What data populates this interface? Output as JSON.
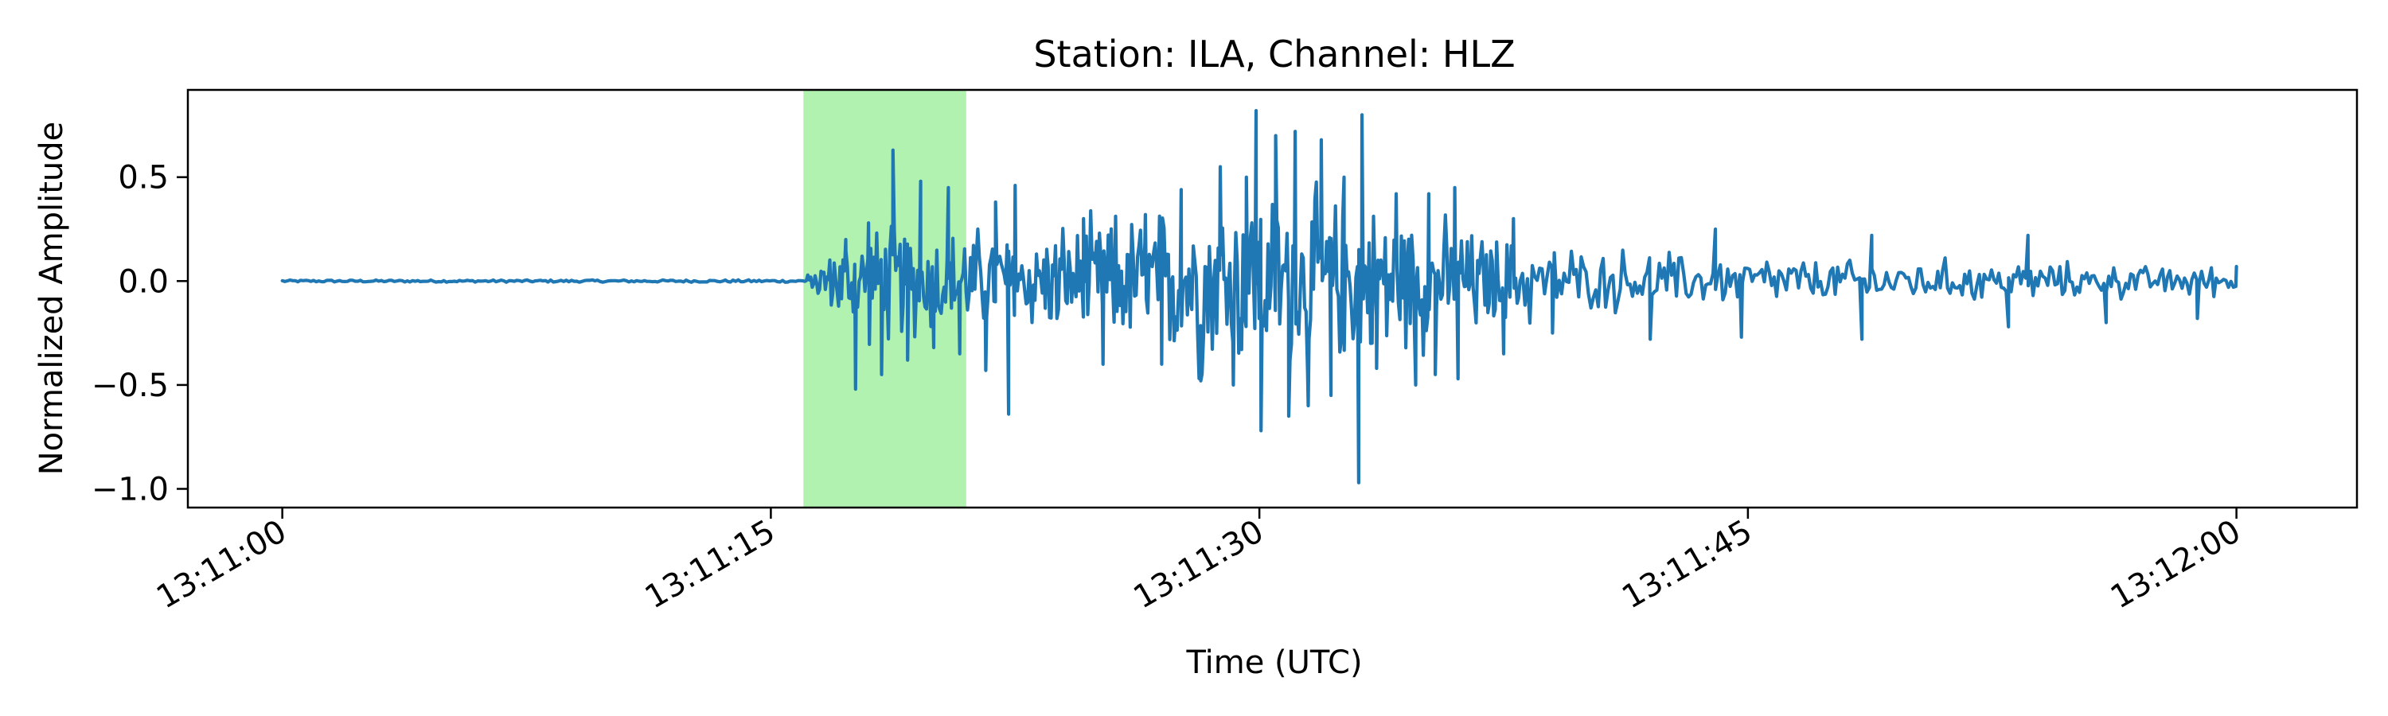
{
  "chart_data": {
    "type": "line",
    "title": "Station: ILA, Channel: HLZ",
    "xlabel": "Time (UTC)",
    "ylabel": "Normalized Amplitude",
    "x_unit": "seconds after 13:11:00 UTC",
    "xlim": [
      -2.9,
      63.7
    ],
    "ylim": [
      -1.09,
      0.92
    ],
    "x_ticks": [
      {
        "value": 0,
        "label": "13:11:00"
      },
      {
        "value": 15,
        "label": "13:11:15"
      },
      {
        "value": 30,
        "label": "13:11:30"
      },
      {
        "value": 45,
        "label": "13:11:45"
      },
      {
        "value": 60,
        "label": "13:12:00"
      }
    ],
    "y_ticks": [
      {
        "value": 0.5,
        "label": "0.5"
      },
      {
        "value": 0.0,
        "label": "0.0"
      },
      {
        "value": -0.5,
        "label": "−0.5"
      },
      {
        "value": -1.0,
        "label": "−1.0"
      }
    ],
    "highlight_region": {
      "x_start": 16.0,
      "x_end": 21.0,
      "color": "#b1f2b1"
    },
    "series_color": "#1f77b4",
    "envelope": [
      {
        "x": 0,
        "a": 0.005
      },
      {
        "x": 15.9,
        "a": 0.006
      },
      {
        "x": 16.0,
        "a": 0.01
      },
      {
        "x": 16.4,
        "a": 0.08
      },
      {
        "x": 17.0,
        "a": 0.2
      },
      {
        "x": 17.5,
        "a": 0.32
      },
      {
        "x": 19.0,
        "a": 0.36
      },
      {
        "x": 21.0,
        "a": 0.3
      },
      {
        "x": 23.0,
        "a": 0.3
      },
      {
        "x": 25.0,
        "a": 0.35
      },
      {
        "x": 28.0,
        "a": 0.5
      },
      {
        "x": 30.0,
        "a": 0.55
      },
      {
        "x": 32.0,
        "a": 0.5
      },
      {
        "x": 34.0,
        "a": 0.45
      },
      {
        "x": 36.0,
        "a": 0.32
      },
      {
        "x": 40.0,
        "a": 0.18
      },
      {
        "x": 45.0,
        "a": 0.14
      },
      {
        "x": 50.0,
        "a": 0.12
      },
      {
        "x": 55.0,
        "a": 0.1
      },
      {
        "x": 60.0,
        "a": 0.08
      }
    ],
    "spikes": [
      {
        "x": 17.3,
        "y": 0.2
      },
      {
        "x": 17.6,
        "y": -0.52
      },
      {
        "x": 18.0,
        "y": 0.28
      },
      {
        "x": 18.4,
        "y": -0.45
      },
      {
        "x": 18.75,
        "y": 0.63
      },
      {
        "x": 19.2,
        "y": -0.38
      },
      {
        "x": 19.6,
        "y": 0.48
      },
      {
        "x": 20.0,
        "y": -0.32
      },
      {
        "x": 20.45,
        "y": 0.45
      },
      {
        "x": 20.8,
        "y": -0.35
      },
      {
        "x": 21.6,
        "y": -0.43
      },
      {
        "x": 21.9,
        "y": 0.38
      },
      {
        "x": 22.3,
        "y": -0.64
      },
      {
        "x": 22.5,
        "y": 0.46
      },
      {
        "x": 24.6,
        "y": 0.3
      },
      {
        "x": 25.2,
        "y": -0.4
      },
      {
        "x": 26.5,
        "y": 0.32
      },
      {
        "x": 27.0,
        "y": -0.4
      },
      {
        "x": 27.6,
        "y": 0.44
      },
      {
        "x": 28.2,
        "y": -0.48
      },
      {
        "x": 28.8,
        "y": 0.55
      },
      {
        "x": 29.2,
        "y": -0.5
      },
      {
        "x": 29.6,
        "y": 0.5
      },
      {
        "x": 29.9,
        "y": 0.82
      },
      {
        "x": 30.05,
        "y": -0.72
      },
      {
        "x": 30.5,
        "y": 0.7
      },
      {
        "x": 30.9,
        "y": -0.65
      },
      {
        "x": 31.1,
        "y": 0.72
      },
      {
        "x": 31.5,
        "y": -0.6
      },
      {
        "x": 31.9,
        "y": 0.68
      },
      {
        "x": 32.2,
        "y": -0.55
      },
      {
        "x": 32.6,
        "y": 0.5
      },
      {
        "x": 33.05,
        "y": -0.97
      },
      {
        "x": 33.15,
        "y": 0.8
      },
      {
        "x": 33.6,
        "y": -0.42
      },
      {
        "x": 34.2,
        "y": 0.42
      },
      {
        "x": 34.8,
        "y": -0.5
      },
      {
        "x": 35.2,
        "y": 0.42
      },
      {
        "x": 35.4,
        "y": -0.45
      },
      {
        "x": 36.1,
        "y": -0.47
      },
      {
        "x": 36.0,
        "y": 0.45
      },
      {
        "x": 37.5,
        "y": -0.35
      },
      {
        "x": 37.8,
        "y": 0.3
      },
      {
        "x": 39.0,
        "y": -0.25
      },
      {
        "x": 42.0,
        "y": -0.28
      },
      {
        "x": 44.0,
        "y": 0.25
      },
      {
        "x": 44.8,
        "y": -0.27
      },
      {
        "x": 48.5,
        "y": -0.28
      },
      {
        "x": 48.8,
        "y": 0.22
      },
      {
        "x": 53.0,
        "y": -0.22
      },
      {
        "x": 53.6,
        "y": 0.22
      },
      {
        "x": 56.0,
        "y": -0.2
      },
      {
        "x": 58.8,
        "y": -0.18
      }
    ],
    "final_point": {
      "x": 60.0,
      "y": 0.07
    }
  }
}
